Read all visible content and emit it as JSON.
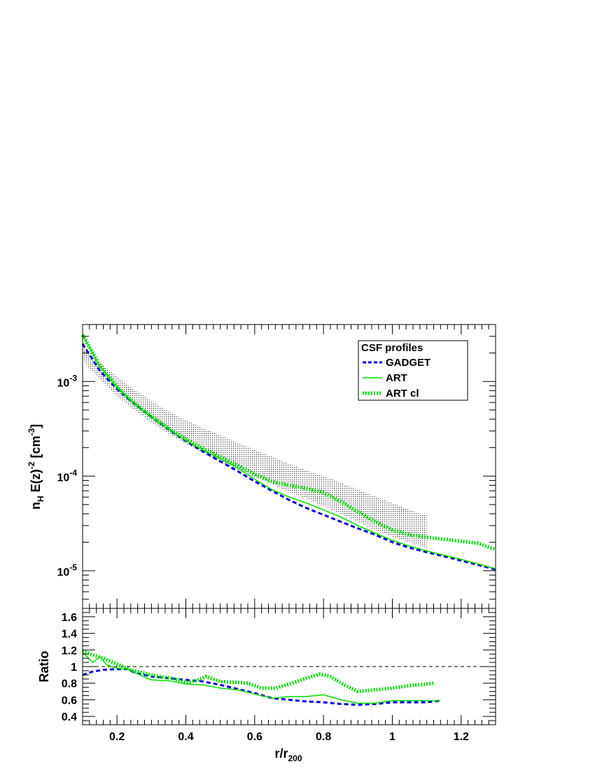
{
  "chart_data": [
    {
      "panel": "profiles",
      "type": "line",
      "xlabel": "r/r",
      "xlabel_sub": "200",
      "ylabel_parts": [
        "n",
        "H",
        " E(z)",
        "-2",
        " [cm",
        "-3",
        "]"
      ],
      "xlim": [
        0.1,
        1.3
      ],
      "ylim": [
        4e-06,
        0.004
      ],
      "yscale": "log",
      "y_tick_labels": [
        {
          "base": "10",
          "exp": "-3",
          "value": 0.001
        },
        {
          "base": "10",
          "exp": "-4",
          "value": 0.0001
        },
        {
          "base": "10",
          "exp": "-5",
          "value": 1e-05
        }
      ],
      "legend": {
        "title": "CSF profiles",
        "position": "top-right"
      },
      "series": [
        {
          "name": "GADGET",
          "style": "dashed",
          "color": "#0000dd",
          "x": [
            0.1,
            0.15,
            0.2,
            0.25,
            0.3,
            0.35,
            0.4,
            0.45,
            0.5,
            0.55,
            0.6,
            0.65,
            0.7,
            0.75,
            0.8,
            0.85,
            0.9,
            0.95,
            1.0,
            1.05,
            1.1,
            1.15,
            1.2,
            1.25,
            1.3
          ],
          "y": [
            0.0025,
            0.0013,
            0.00083,
            0.00058,
            0.00042,
            0.00031,
            0.000235,
            0.000182,
            0.000143,
            0.000113,
            8.8e-05,
            7e-05,
            5.6e-05,
            4.6e-05,
            3.9e-05,
            3.3e-05,
            2.8e-05,
            2.4e-05,
            2e-05,
            1.75e-05,
            1.57e-05,
            1.42e-05,
            1.28e-05,
            1.15e-05,
            1.03e-05
          ]
        },
        {
          "name": "ART",
          "style": "solid",
          "color": "#00dd00",
          "x": [
            0.1,
            0.15,
            0.2,
            0.25,
            0.3,
            0.35,
            0.4,
            0.45,
            0.5,
            0.55,
            0.6,
            0.65,
            0.7,
            0.75,
            0.8,
            0.85,
            0.9,
            0.95,
            1.0,
            1.05,
            1.1,
            1.15,
            1.2,
            1.25,
            1.3
          ],
          "y": [
            0.0031,
            0.00145,
            0.00086,
            0.00058,
            0.00042,
            0.00031,
            0.000238,
            0.000188,
            0.000152,
            0.000122,
            9.3e-05,
            7.2e-05,
            6e-05,
            5.2e-05,
            4.4e-05,
            3.7e-05,
            3e-05,
            2.5e-05,
            2.1e-05,
            1.82e-05,
            1.62e-05,
            1.46e-05,
            1.32e-05,
            1.18e-05,
            1.05e-05
          ]
        },
        {
          "name": "ART cl",
          "style": "dotted",
          "color": "#00dd00",
          "x": [
            0.1,
            0.15,
            0.2,
            0.25,
            0.3,
            0.35,
            0.4,
            0.45,
            0.5,
            0.55,
            0.6,
            0.65,
            0.7,
            0.75,
            0.8,
            0.85,
            0.9,
            0.95,
            1.0,
            1.05,
            1.1,
            1.15,
            1.2,
            1.25,
            1.3
          ],
          "y": [
            0.0031,
            0.00148,
            0.00088,
            0.00059,
            0.00043,
            0.00032,
            0.000245,
            0.000195,
            0.00016,
            0.00013,
            0.000105,
            8.8e-05,
            8e-05,
            7.4e-05,
            6.7e-05,
            5.4e-05,
            4.2e-05,
            3.3e-05,
            2.7e-05,
            2.4e-05,
            2.25e-05,
            2.15e-05,
            2.05e-05,
            1.95e-05,
            1.67e-05
          ]
        }
      ],
      "band": {
        "x": [
          0.1,
          0.15,
          0.2,
          0.25,
          0.3,
          0.35,
          0.4,
          0.45,
          0.5,
          0.55,
          0.6,
          0.65,
          0.7,
          0.75,
          0.8,
          0.85,
          0.9,
          0.95,
          1.0,
          1.05,
          1.1
        ],
        "low": [
          0.0017,
          0.00105,
          0.0007,
          0.0005,
          0.00037,
          0.00028,
          0.00022,
          0.000175,
          0.000143,
          0.000118,
          9.8e-05,
          8.3e-05,
          6.8e-05,
          5.8e-05,
          4.8e-05,
          4e-05,
          3.3e-05,
          2.7e-05,
          2.3e-05,
          2e-05,
          1.75e-05
        ],
        "high": [
          0.0025,
          0.0016,
          0.00112,
          0.00082,
          0.00062,
          0.00048,
          0.00039,
          0.00032,
          0.00027,
          0.000225,
          0.00019,
          0.00016,
          0.000135,
          0.000115,
          0.0001,
          8.5e-05,
          7.2e-05,
          6.1e-05,
          5.2e-05,
          4.4e-05,
          3.8e-05
        ]
      }
    },
    {
      "panel": "ratio",
      "type": "line",
      "xlabel": "r/r",
      "xlabel_sub": "200",
      "ylabel": "Ratio",
      "xlim": [
        0.1,
        1.3
      ],
      "ylim": [
        0.3,
        1.7
      ],
      "x_tick_labels": [
        "0.2",
        "0.4",
        "0.6",
        "0.8",
        "1",
        "1.2"
      ],
      "x_tick_values": [
        0.2,
        0.4,
        0.6,
        0.8,
        1.0,
        1.2
      ],
      "y_tick_labels": [
        "0.4",
        "0.6",
        "0.8",
        "1",
        "1.2",
        "1.4",
        "1.6"
      ],
      "y_tick_values": [
        0.4,
        0.6,
        0.8,
        1.0,
        1.2,
        1.4,
        1.6
      ],
      "reference_line": 1.0,
      "series": [
        {
          "name": "GADGET",
          "style": "dashed",
          "color": "#0000dd",
          "x": [
            0.1,
            0.13,
            0.16,
            0.2,
            0.23,
            0.25,
            0.3,
            0.35,
            0.4,
            0.45,
            0.5,
            0.55,
            0.6,
            0.65,
            0.7,
            0.75,
            0.8,
            0.85,
            0.9,
            0.95,
            1.0,
            1.05,
            1.1,
            1.14
          ],
          "y": [
            0.9,
            0.94,
            0.96,
            0.97,
            0.97,
            0.93,
            0.88,
            0.86,
            0.84,
            0.82,
            0.78,
            0.73,
            0.68,
            0.62,
            0.6,
            0.58,
            0.57,
            0.55,
            0.54,
            0.55,
            0.57,
            0.57,
            0.57,
            0.59
          ]
        },
        {
          "name": "ART",
          "style": "solid",
          "color": "#00dd00",
          "x": [
            0.1,
            0.13,
            0.15,
            0.17,
            0.2,
            0.23,
            0.26,
            0.3,
            0.35,
            0.4,
            0.45,
            0.5,
            0.55,
            0.6,
            0.65,
            0.7,
            0.75,
            0.8,
            0.85,
            0.9,
            0.95,
            1.0,
            1.05,
            1.1,
            1.14
          ],
          "y": [
            1.17,
            1.05,
            1.12,
            1.02,
            0.98,
            0.97,
            0.91,
            0.84,
            0.83,
            0.79,
            0.78,
            0.74,
            0.72,
            0.67,
            0.62,
            0.64,
            0.64,
            0.66,
            0.6,
            0.56,
            0.56,
            0.59,
            0.59,
            0.59,
            0.59
          ]
        },
        {
          "name": "ART cl",
          "style": "dotted",
          "color": "#00dd00",
          "x": [
            0.1,
            0.13,
            0.16,
            0.2,
            0.24,
            0.28,
            0.32,
            0.36,
            0.4,
            0.43,
            0.46,
            0.5,
            0.55,
            0.58,
            0.62,
            0.66,
            0.7,
            0.75,
            0.79,
            0.82,
            0.86,
            0.9,
            0.95,
            1.0,
            1.05,
            1.1,
            1.12
          ],
          "y": [
            1.19,
            1.14,
            1.1,
            1.03,
            0.96,
            0.92,
            0.88,
            0.86,
            0.81,
            0.83,
            0.88,
            0.82,
            0.81,
            0.8,
            0.74,
            0.74,
            0.79,
            0.86,
            0.91,
            0.88,
            0.78,
            0.7,
            0.72,
            0.74,
            0.77,
            0.79,
            0.8
          ]
        }
      ]
    }
  ]
}
